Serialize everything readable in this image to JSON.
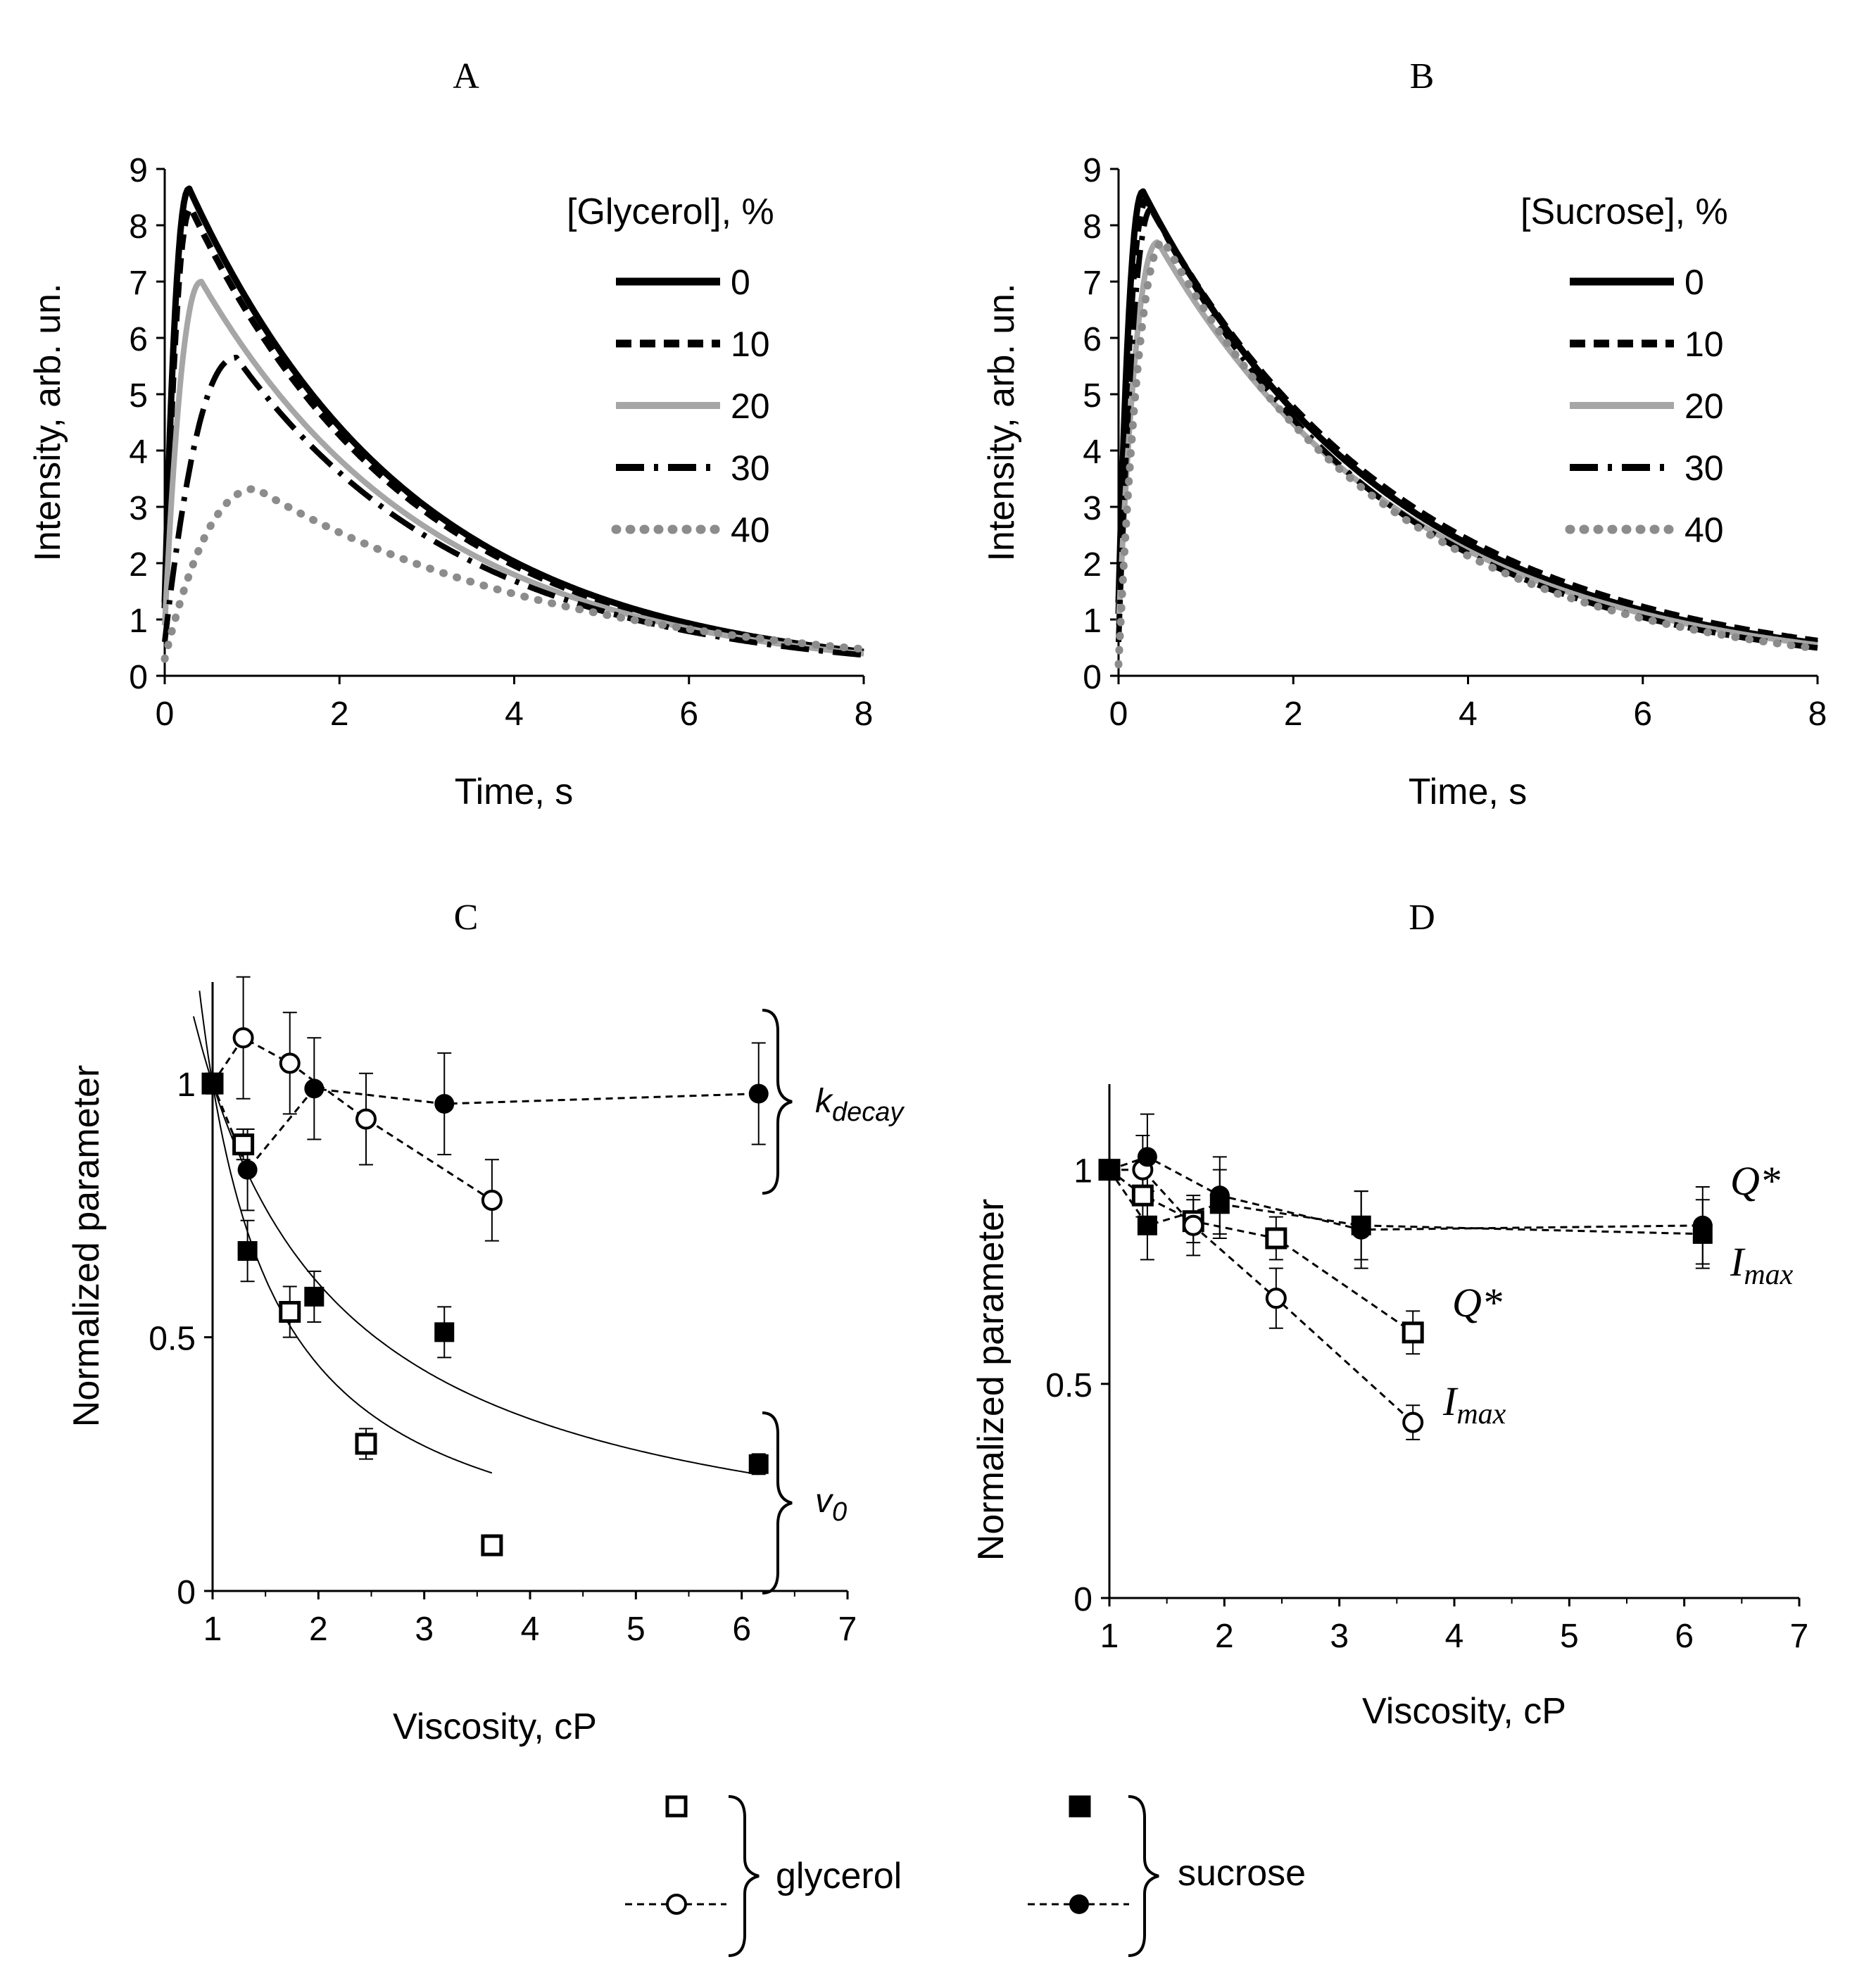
{
  "chart_data": [
    {
      "id": "A",
      "panel_label": "A",
      "type": "line",
      "xlabel": "Time, s",
      "ylabel": "Intensity, arb. un.",
      "xlim": [
        0,
        8
      ],
      "ylim": [
        0,
        9
      ],
      "xticks": [
        "0",
        "2",
        "4",
        "6",
        "8"
      ],
      "yticks": [
        "0",
        "1",
        "2",
        "3",
        "4",
        "5",
        "6",
        "7",
        "8",
        "9"
      ],
      "legend_title": "[Glycerol], %",
      "legend_position": "top-right",
      "series": [
        {
          "name": "0",
          "style": "solid-black",
          "peak_time": 0.28,
          "peak": 8.65,
          "decay": 0.39,
          "start": 1.3
        },
        {
          "name": "10",
          "style": "dashed-black",
          "peak_time": 0.3,
          "peak": 8.3,
          "decay": 0.39,
          "start": 1.2
        },
        {
          "name": "20",
          "style": "solid-gray",
          "peak_time": 0.42,
          "peak": 7.0,
          "decay": 0.38,
          "start": 0.9
        },
        {
          "name": "30",
          "style": "dashdot-black",
          "peak_time": 0.82,
          "peak": 5.65,
          "decay": 0.38,
          "start": 0.6
        },
        {
          "name": "40",
          "style": "dotted-gray",
          "peak_time": 1.05,
          "peak": 3.32,
          "decay": 0.28,
          "start": 0.3
        }
      ]
    },
    {
      "id": "B",
      "panel_label": "B",
      "type": "line",
      "xlabel": "Time, s",
      "ylabel": "Intensity, arb. un.",
      "xlim": [
        0,
        8
      ],
      "ylim": [
        0,
        9
      ],
      "xticks": [
        "0",
        "2",
        "4",
        "6",
        "8"
      ],
      "yticks": [
        "0",
        "1",
        "2",
        "3",
        "4",
        "5",
        "6",
        "7",
        "8",
        "9"
      ],
      "legend_title": "[Sucrose], %",
      "legend_position": "top-right",
      "series": [
        {
          "name": "0",
          "style": "solid-black",
          "peak_time": 0.28,
          "peak": 8.6,
          "decay": 0.35,
          "start": 1.3
        },
        {
          "name": "10",
          "style": "dashed-black",
          "peak_time": 0.32,
          "peak": 8.45,
          "decay": 0.34,
          "start": 1.1
        },
        {
          "name": "20",
          "style": "solid-gray",
          "peak_time": 0.45,
          "peak": 7.7,
          "decay": 0.35,
          "start": 0.9
        },
        {
          "name": "30",
          "style": "dashdot-black",
          "peak_time": 0.38,
          "peak": 8.3,
          "decay": 0.37,
          "start": 0.6
        },
        {
          "name": "40",
          "style": "dotted-gray",
          "peak_time": 0.52,
          "peak": 7.72,
          "decay": 0.37,
          "start": 0.2
        }
      ]
    },
    {
      "id": "C",
      "panel_label": "C",
      "type": "scatter",
      "xlabel": "Viscosity, cP",
      "ylabel": "Normalized parameter",
      "xlim": [
        1,
        7
      ],
      "ylim": [
        0,
        1.2
      ],
      "xticks": [
        "1",
        "2",
        "3",
        "4",
        "5",
        "6",
        "7"
      ],
      "yticks": [
        "0",
        "0.5",
        "1"
      ],
      "series": [
        {
          "name": "glycerol v0",
          "marker": "open-square",
          "x": [
            1.0,
            1.29,
            1.73,
            2.45,
            3.64
          ],
          "y": [
            1.0,
            0.88,
            0.55,
            0.29,
            0.09
          ],
          "err": [
            0.02,
            0.03,
            0.05,
            0.03,
            0.02
          ]
        },
        {
          "name": "sucrose v0",
          "marker": "filled-square",
          "x": [
            1.0,
            1.33,
            1.96,
            3.19,
            6.16
          ],
          "y": [
            1.0,
            0.67,
            0.58,
            0.51,
            0.25
          ],
          "err": [
            0.02,
            0.06,
            0.05,
            0.05,
            0.02
          ]
        },
        {
          "name": "glycerol kdecay",
          "marker": "open-circle",
          "dashed": true,
          "x": [
            1.0,
            1.29,
            1.73,
            2.45,
            3.64
          ],
          "y": [
            1.0,
            1.09,
            1.04,
            0.93,
            0.77
          ],
          "err": [
            0.0,
            0.12,
            0.1,
            0.09,
            0.08
          ]
        },
        {
          "name": "sucrose kdecay",
          "marker": "filled-circle",
          "dashed": true,
          "x": [
            1.0,
            1.33,
            1.96,
            3.19,
            6.16
          ],
          "y": [
            1.0,
            0.83,
            0.99,
            0.96,
            0.98
          ],
          "err": [
            0.0,
            0.08,
            0.1,
            0.1,
            0.1
          ]
        }
      ],
      "fits": [
        {
          "name": "glycerol v0 fit",
          "k": 1.25,
          "x_range": [
            1.0,
            3.64
          ]
        },
        {
          "name": "sucrose v0 fit",
          "k": 0.65,
          "x_range": [
            1.0,
            6.16
          ]
        }
      ],
      "annotations": {
        "kdecay_prefix": "k",
        "kdecay_sub": "decay",
        "v0_prefix": "v",
        "v0_sub": "0"
      }
    },
    {
      "id": "D",
      "panel_label": "D",
      "type": "scatter",
      "xlabel": "Viscosity, cP",
      "ylabel": "Normalized parameter",
      "xlim": [
        1,
        7
      ],
      "ylim": [
        0,
        1.2
      ],
      "xticks": [
        "1",
        "2",
        "3",
        "4",
        "5",
        "6",
        "7"
      ],
      "yticks": [
        "0",
        "0.5",
        "1"
      ],
      "series": [
        {
          "name": "glycerol Q*",
          "marker": "open-square",
          "dashed": true,
          "x": [
            1.0,
            1.29,
            1.73,
            2.45,
            3.64
          ],
          "y": [
            1.0,
            0.94,
            0.88,
            0.84,
            0.62
          ],
          "err": [
            0.0,
            0.05,
            0.05,
            0.05,
            0.05
          ]
        },
        {
          "name": "sucrose Q*",
          "marker": "filled-square",
          "dashed": true,
          "x": [
            1.0,
            1.33,
            1.96,
            3.19,
            6.16
          ],
          "y": [
            1.0,
            0.87,
            0.92,
            0.87,
            0.85
          ],
          "err": [
            0.0,
            0.08,
            0.08,
            0.08,
            0.08
          ]
        },
        {
          "name": "glycerol Imax",
          "marker": "open-circle",
          "dashed": true,
          "x": [
            1.0,
            1.29,
            1.73,
            2.45,
            3.64
          ],
          "y": [
            1.0,
            1.0,
            0.87,
            0.7,
            0.41
          ],
          "err": [
            0.0,
            0.08,
            0.07,
            0.07,
            0.04
          ]
        },
        {
          "name": "sucrose Imax",
          "marker": "filled-circle",
          "dashed": true,
          "x": [
            1.0,
            1.33,
            1.96,
            3.19,
            6.16
          ],
          "y": [
            1.0,
            1.03,
            0.94,
            0.86,
            0.87
          ],
          "err": [
            0.0,
            0.1,
            0.09,
            0.09,
            0.09
          ]
        }
      ],
      "annotations": {
        "q_sucrose": "Q*",
        "imax_sucrose_prefix": "I",
        "imax_sucrose_sub": "max",
        "q_glycerol": "Q*",
        "imax_glycerol_prefix": "I",
        "imax_glycerol_sub": "max"
      }
    }
  ],
  "legend": {
    "glycerol": "glycerol",
    "sucrose": "sucrose"
  }
}
